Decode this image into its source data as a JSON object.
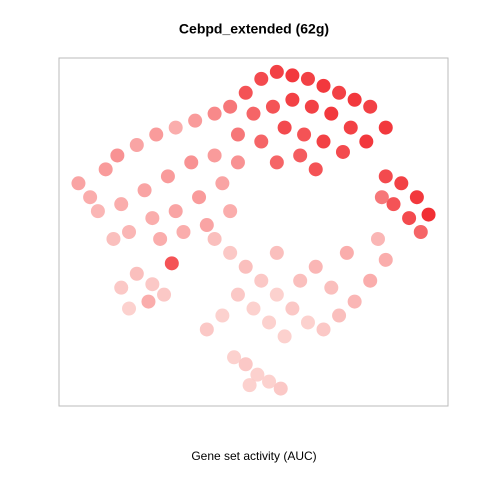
{
  "chart_data": {
    "type": "scatter",
    "title": "Cebpd_extended (62g)",
    "x_label": "Gene set activity (AUC)",
    "xlim": [
      0,
      100
    ],
    "ylim": [
      0,
      100
    ],
    "color_low": "#fde0dc",
    "color_high": "#f0181e",
    "series": [
      {
        "x": [
          48,
          52,
          56,
          60,
          64,
          68,
          72,
          76,
          80,
          84,
          50,
          55,
          60,
          65,
          70,
          75,
          79,
          46,
          52,
          58,
          63,
          68,
          73,
          56,
          62,
          44,
          40,
          66,
          84,
          88,
          92,
          95,
          90,
          86,
          93,
          83,
          5,
          8,
          12,
          15,
          20,
          25,
          30,
          35,
          10,
          16,
          22,
          28,
          34,
          40,
          18,
          24,
          30,
          36,
          42,
          14,
          26,
          32,
          38,
          44,
          46,
          40,
          44,
          48,
          52,
          56,
          60,
          64,
          68,
          72,
          76,
          80,
          84,
          82,
          50,
          46,
          42,
          38,
          54,
          58,
          62,
          66,
          70,
          74,
          56,
          29,
          16,
          20,
          24,
          18,
          23,
          27,
          45,
          48,
          51,
          54,
          57,
          49
        ],
        "values": [
          90,
          94,
          96,
          95,
          94,
          92,
          90,
          88,
          86,
          80,
          84,
          86,
          88,
          86,
          84,
          80,
          76,
          78,
          76,
          80,
          78,
          76,
          73,
          70,
          72,
          86,
          84,
          68,
          66,
          64,
          60,
          55,
          54,
          58,
          50,
          60,
          64,
          60,
          68,
          72,
          75,
          78,
          80,
          82,
          56,
          58,
          62,
          66,
          70,
          72,
          50,
          54,
          56,
          60,
          64,
          48,
          48,
          50,
          52,
          56,
          70,
          48,
          44,
          40,
          36,
          32,
          28,
          24,
          22,
          26,
          30,
          36,
          42,
          48,
          28,
          32,
          26,
          22,
          24,
          20,
          36,
          40,
          34,
          44,
          44,
          41,
          34,
          38,
          35,
          28,
          30,
          32,
          14,
          12,
          9,
          7,
          5,
          6
        ],
        "activity": [
          0.8,
          0.85,
          0.9,
          0.95,
          0.9,
          0.95,
          0.9,
          0.95,
          0.9,
          0.95,
          0.7,
          0.8,
          0.9,
          0.9,
          0.95,
          0.9,
          0.95,
          0.6,
          0.7,
          0.85,
          0.8,
          0.9,
          0.85,
          0.7,
          0.75,
          0.6,
          0.5,
          0.8,
          0.85,
          0.9,
          0.95,
          1,
          0.85,
          0.8,
          0.7,
          0.6,
          0.35,
          0.3,
          0.4,
          0.45,
          0.35,
          0.4,
          0.3,
          0.4,
          0.25,
          0.3,
          0.35,
          0.4,
          0.45,
          0.4,
          0.25,
          0.3,
          0.35,
          0.4,
          0.35,
          0.2,
          0.3,
          0.3,
          0.35,
          0.3,
          0.45,
          0.2,
          0.15,
          0.2,
          0.15,
          0.1,
          0.15,
          0.1,
          0.15,
          0.2,
          0.25,
          0.3,
          0.3,
          0.25,
          0.1,
          0.15,
          0.1,
          0.15,
          0.1,
          0.1,
          0.2,
          0.25,
          0.2,
          0.3,
          0.2,
          0.8,
          0.15,
          0.2,
          0.15,
          0.1,
          0.3,
          0.15,
          0.1,
          0.15,
          0.1,
          0.1,
          0.15,
          0.1
        ]
      }
    ]
  }
}
